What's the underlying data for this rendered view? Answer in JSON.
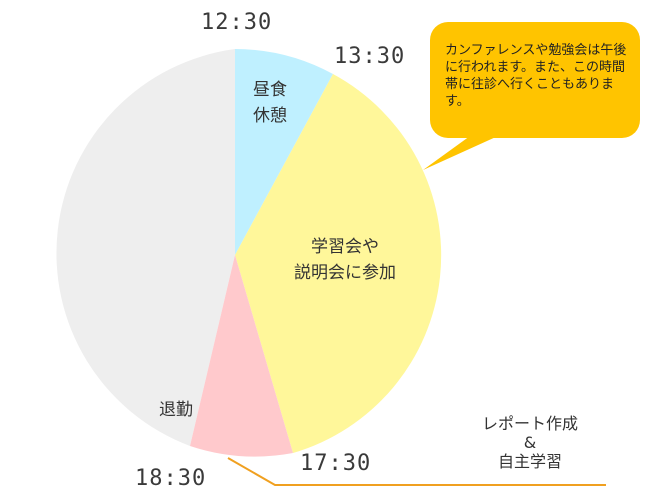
{
  "times": {
    "t1230": "12:30",
    "t1330": "13:30",
    "t1730": "17:30",
    "t1830": "18:30"
  },
  "segments": {
    "lunch": {
      "line1": "昼食",
      "line2": "休憩",
      "color": "#bff0ff"
    },
    "study": {
      "line1": "学習会や",
      "line2": "説明会に参加",
      "color": "#fff79a"
    },
    "report": {
      "color": "#ffc9cc"
    },
    "leave": {
      "label": "退勤",
      "color": "#eeeeee"
    }
  },
  "callout": {
    "text": "カンファレンスや勉強会は午後に行われます。また、この時間帯に往診へ行くこともあります。",
    "color": "#ffc400"
  },
  "report_note": {
    "line1": "レポート作成",
    "line2": "&",
    "line3": "自主学習",
    "line_color": "#f0a020"
  }
}
